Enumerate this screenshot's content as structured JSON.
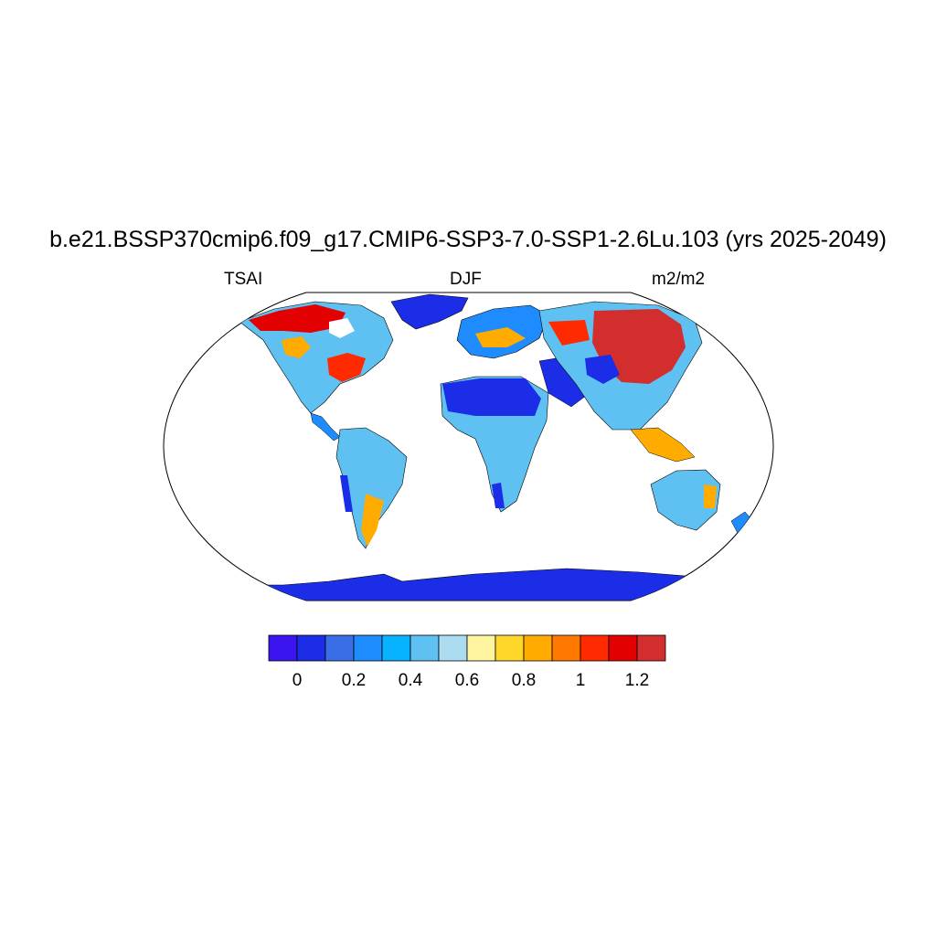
{
  "title": "b.e21.BSSP370cmip6.f09_g17.CMIP6-SSP3-7.0-SSP1-2.6Lu.103 (yrs 2025-2049)",
  "left_label": "TSAI",
  "center_label": "DJF",
  "right_label": "m2/m2",
  "colorbar": {
    "colors": [
      "#3b14f0",
      "#1c2de8",
      "#3a6ee6",
      "#1e8cff",
      "#07b2ff",
      "#5ec1f2",
      "#acdcf2",
      "#fff4a0",
      "#ffd62a",
      "#ffab00",
      "#ff7800",
      "#ff2a00",
      "#e20000",
      "#d22e2e"
    ],
    "tick_labels": [
      "0",
      "0.2",
      "0.4",
      "0.6",
      "0.8",
      "1",
      "1.2"
    ],
    "tick_positions": [
      1,
      3,
      5,
      7,
      9,
      11,
      13
    ]
  }
}
